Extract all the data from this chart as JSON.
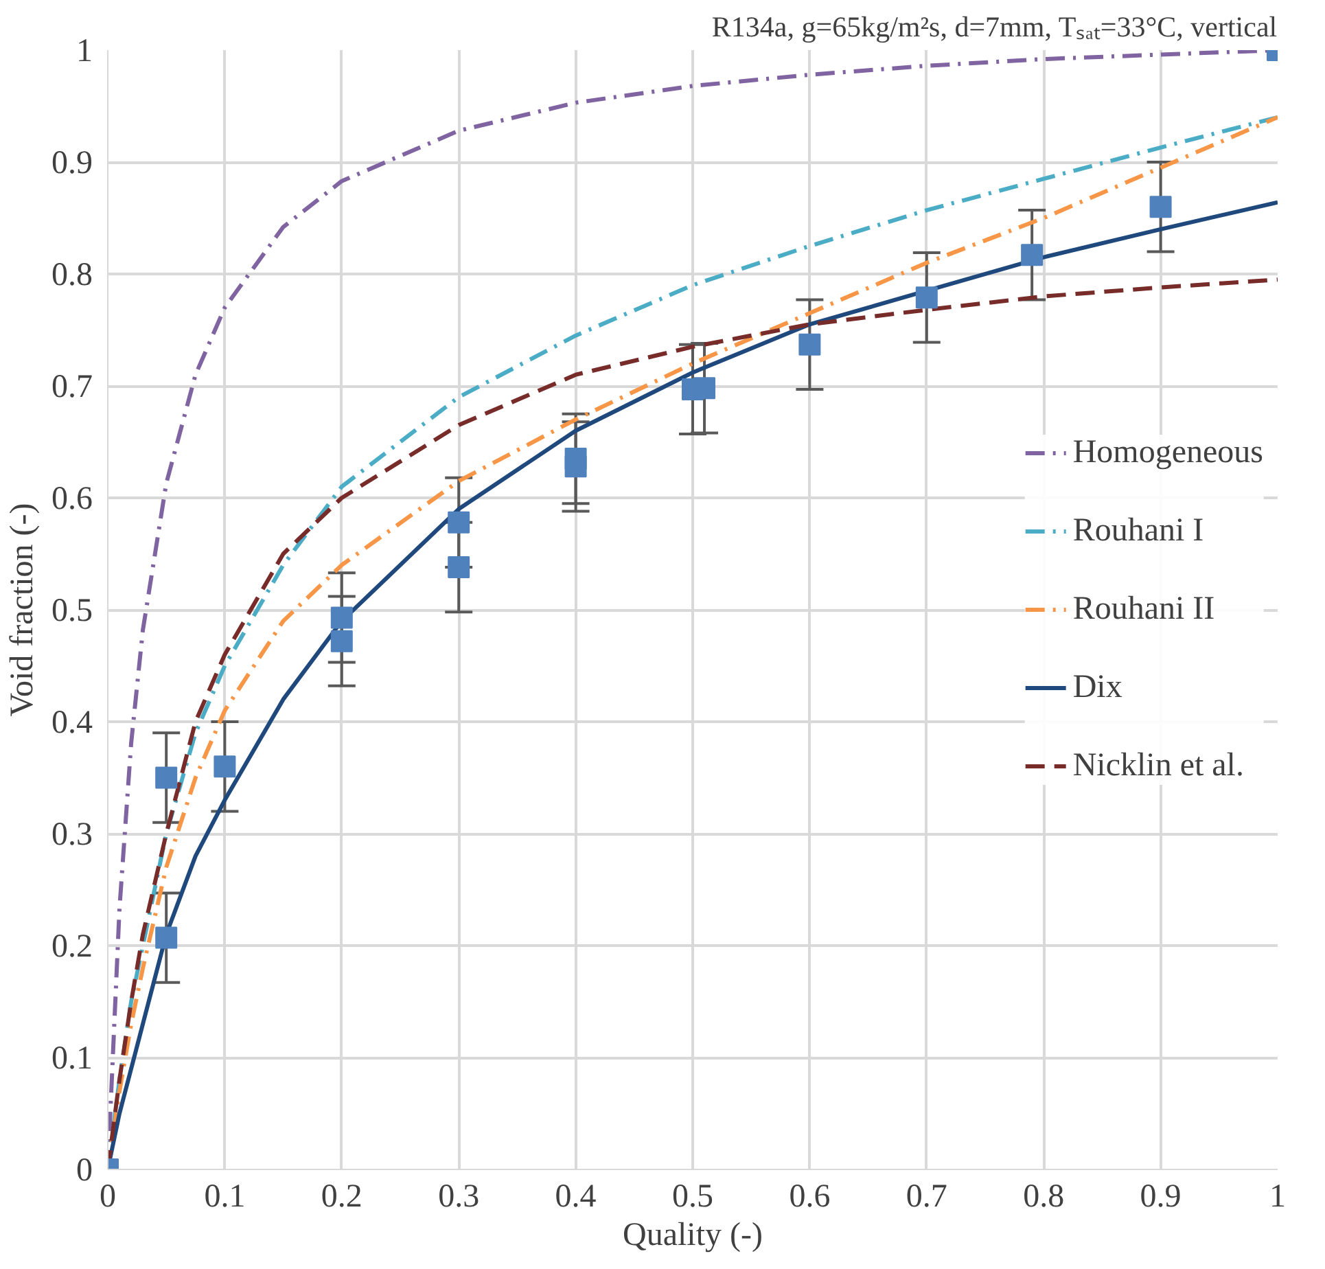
{
  "chart_data": {
    "type": "line",
    "title": "R134a, g=65kg/m²s, d=7mm, Tₛₐₜ=33°C, vertical",
    "xlabel": "Quality (-)",
    "ylabel": "Void fraction (-)",
    "x": [
      0,
      0.01,
      0.02,
      0.03,
      0.05,
      0.075,
      0.1,
      0.15,
      0.2,
      0.3,
      0.4,
      0.5,
      0.6,
      0.7,
      0.8,
      0.9,
      1
    ],
    "series": [
      {
        "name": "Homogeneous",
        "color": "#8064a2",
        "line_style": "dashdot",
        "values": [
          0,
          0.233,
          0.381,
          0.482,
          0.613,
          0.71,
          0.77,
          0.842,
          0.883,
          0.928,
          0.953,
          0.968,
          0.978,
          0.986,
          0.992,
          0.996,
          1
        ]
      },
      {
        "name": "Rouhani I",
        "color": "#4bacc6",
        "line_style": "dashdot",
        "values": [
          0,
          0.08,
          0.15,
          0.2,
          0.3,
          0.39,
          0.45,
          0.54,
          0.61,
          0.69,
          0.745,
          0.79,
          0.825,
          0.857,
          0.885,
          0.913,
          0.94
        ]
      },
      {
        "name": "Rouhani II",
        "color": "#f79646",
        "line_style": "dashdot",
        "values": [
          0,
          0.07,
          0.13,
          0.18,
          0.27,
          0.35,
          0.41,
          0.49,
          0.54,
          0.615,
          0.67,
          0.72,
          0.765,
          0.81,
          0.85,
          0.895,
          0.94
        ]
      },
      {
        "name": "Dix",
        "color": "#1f497d",
        "line_style": "solid",
        "values": [
          0,
          0.05,
          0.09,
          0.13,
          0.21,
          0.28,
          0.33,
          0.42,
          0.49,
          0.59,
          0.66,
          0.712,
          0.755,
          0.785,
          0.815,
          0.84,
          0.864
        ]
      },
      {
        "name": "Nicklin et al.",
        "color": "#772c2a",
        "line_style": "dashed",
        "values": [
          0,
          0.08,
          0.15,
          0.21,
          0.3,
          0.4,
          0.46,
          0.55,
          0.6,
          0.665,
          0.71,
          0.735,
          0.755,
          0.768,
          0.78,
          0.788,
          0.795
        ]
      },
      {
        "type": "scatter",
        "color": "#4f81bd",
        "marker": "square",
        "x": [
          0,
          0.05,
          0.05,
          0.1,
          0.2,
          0.2,
          0.3,
          0.3,
          0.4,
          0.4,
          0.5,
          0.51,
          0.6,
          0.7,
          0.79,
          0.9,
          1
        ],
        "values": [
          0,
          0.35,
          0.207,
          0.36,
          0.493,
          0.472,
          0.578,
          0.538,
          0.635,
          0.628,
          0.697,
          0.698,
          0.737,
          0.779,
          0.817,
          0.86,
          1
        ],
        "errors": [
          null,
          0.04,
          0.04,
          0.04,
          0.04,
          0.04,
          0.04,
          0.04,
          0.04,
          0.04,
          0.04,
          0.04,
          0.04,
          0.04,
          0.04,
          0.04,
          null
        ]
      }
    ],
    "xlim": [
      0,
      1
    ],
    "ylim": [
      0,
      1
    ],
    "xticks": [
      0,
      0.1,
      0.2,
      0.3,
      0.4,
      0.5,
      0.6,
      0.7,
      0.8,
      0.9,
      1
    ],
    "yticks": [
      0,
      0.1,
      0.2,
      0.3,
      0.4,
      0.5,
      0.6,
      0.7,
      0.8,
      0.9,
      1
    ],
    "grid": true,
    "legend": "right"
  }
}
